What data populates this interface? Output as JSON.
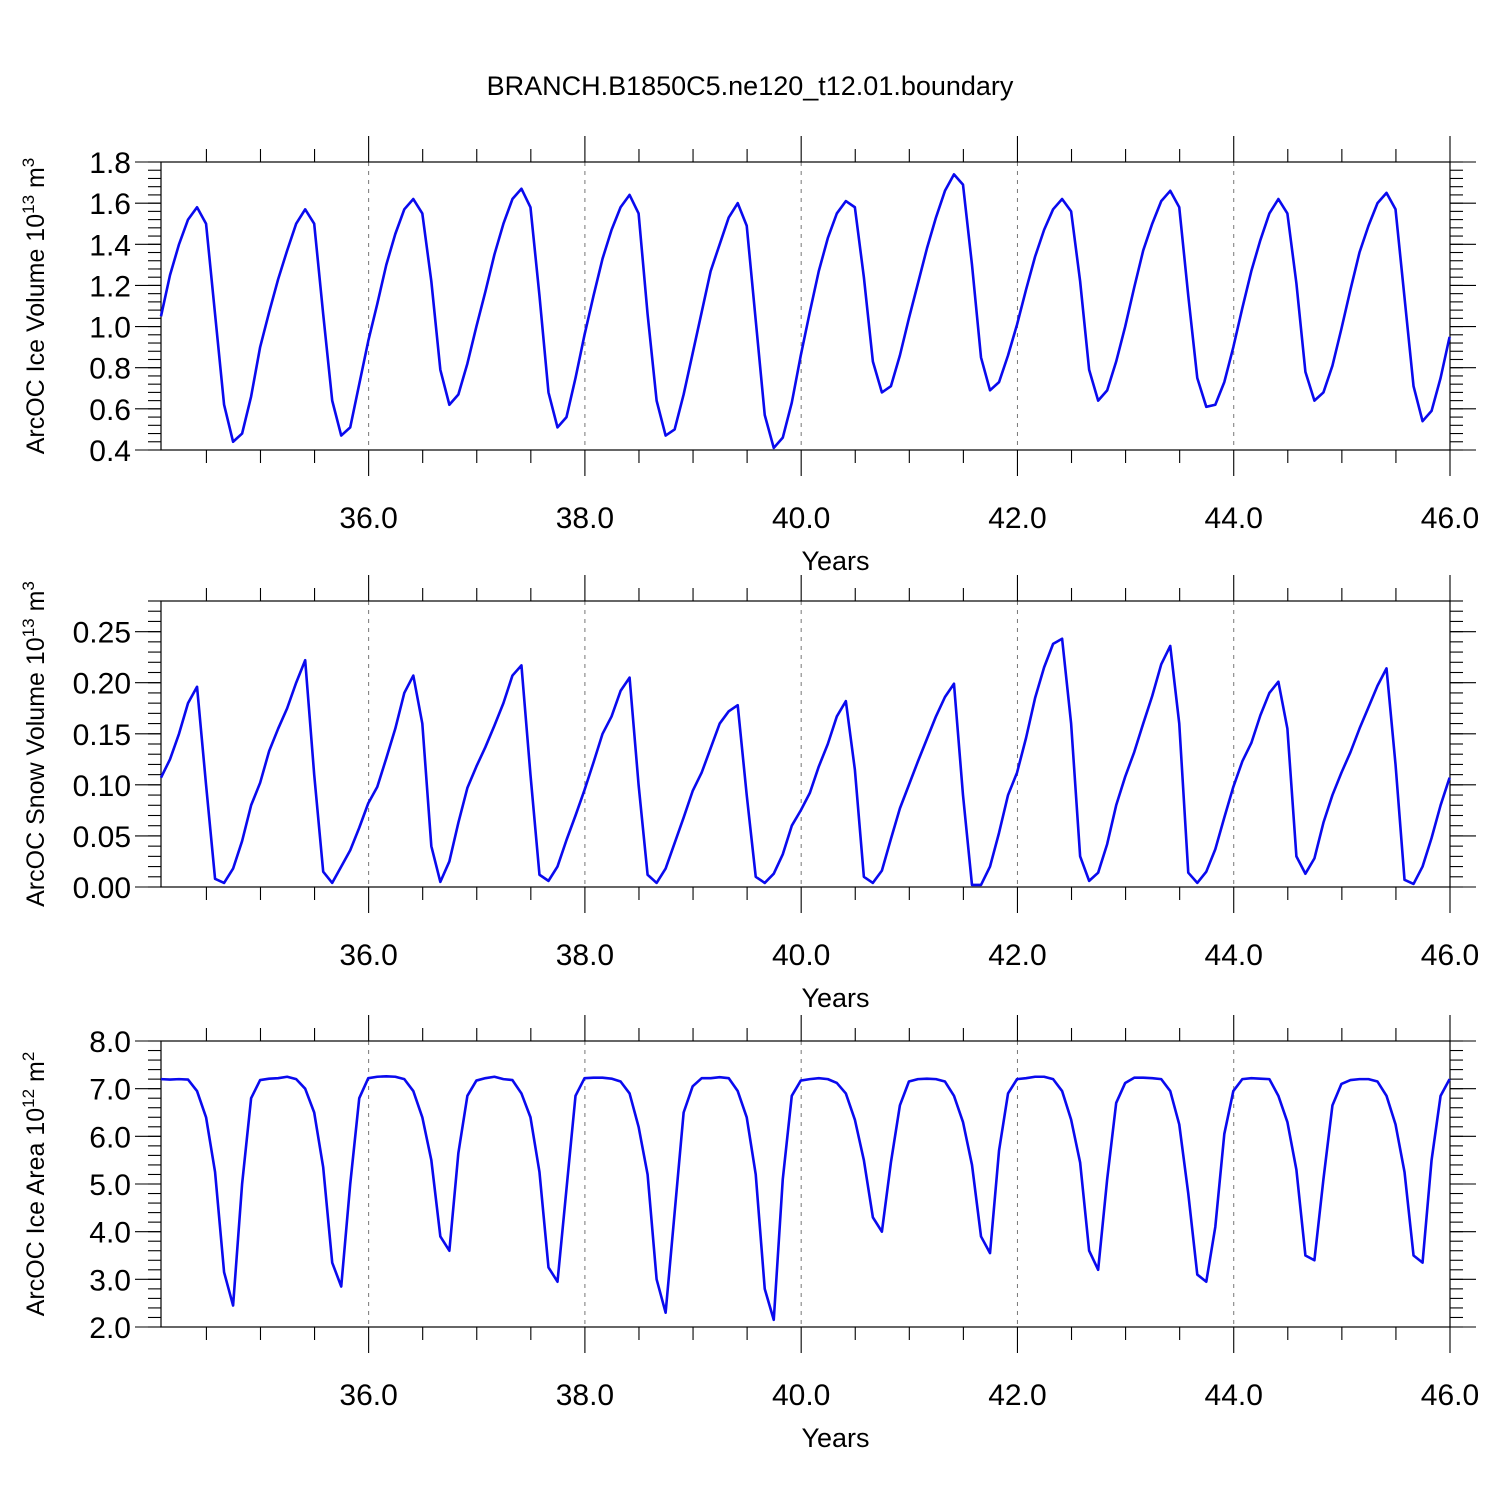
{
  "title": "BRANCH.B1850C5.ne120_t12.01.boundary",
  "colors": {
    "line": "#0a0aee",
    "axis": "#000000",
    "grid": "#777777"
  },
  "chart_data": [
    {
      "type": "line",
      "ylabel": "ArcOC Ice Volume 10",
      "ylabel_unit_exp": "13",
      "ylabel_unit": "m",
      "ylabel_unit_pow": "3",
      "xlabel": "Years",
      "xlim": [
        34.08,
        46.0
      ],
      "ylim": [
        0.4,
        1.8
      ],
      "xticks": [
        "36.0",
        "38.0",
        "40.0",
        "42.0",
        "44.0",
        "46.0"
      ],
      "yticks": [
        "0.4",
        "0.6",
        "0.8",
        "1.0",
        "1.2",
        "1.4",
        "1.6",
        "1.8"
      ],
      "grid": "x-dashed",
      "series": [
        {
          "x_start": 34.08,
          "x_step": 0.08333,
          "values": [
            1.05,
            1.25,
            1.4,
            1.52,
            1.58,
            1.5,
            1.06,
            0.62,
            0.44,
            0.48,
            0.66,
            0.9,
            1.07,
            1.23,
            1.37,
            1.5,
            1.57,
            1.5,
            1.06,
            0.64,
            0.47,
            0.51,
            0.72,
            0.93,
            1.11,
            1.3,
            1.45,
            1.57,
            1.62,
            1.55,
            1.22,
            0.79,
            0.62,
            0.67,
            0.82,
            1.0,
            1.17,
            1.35,
            1.5,
            1.62,
            1.67,
            1.58,
            1.15,
            0.68,
            0.51,
            0.56,
            0.75,
            0.96,
            1.15,
            1.33,
            1.47,
            1.58,
            1.64,
            1.55,
            1.06,
            0.64,
            0.47,
            0.5,
            0.67,
            0.87,
            1.07,
            1.27,
            1.4,
            1.53,
            1.6,
            1.49,
            1.03,
            0.57,
            0.41,
            0.46,
            0.63,
            0.86,
            1.07,
            1.27,
            1.43,
            1.55,
            1.61,
            1.58,
            1.24,
            0.83,
            0.68,
            0.71,
            0.86,
            1.04,
            1.21,
            1.38,
            1.53,
            1.66,
            1.74,
            1.69,
            1.3,
            0.85,
            0.69,
            0.73,
            0.86,
            1.01,
            1.18,
            1.34,
            1.47,
            1.57,
            1.62,
            1.56,
            1.22,
            0.79,
            0.64,
            0.69,
            0.83,
            1.0,
            1.19,
            1.37,
            1.5,
            1.61,
            1.66,
            1.58,
            1.15,
            0.75,
            0.61,
            0.62,
            0.73,
            0.9,
            1.09,
            1.27,
            1.42,
            1.55,
            1.62,
            1.55,
            1.21,
            0.78,
            0.64,
            0.68,
            0.81,
            0.99,
            1.18,
            1.36,
            1.49,
            1.6,
            1.65,
            1.57,
            1.14,
            0.71,
            0.54,
            0.59,
            0.75,
            0.95
          ]
        }
      ]
    },
    {
      "type": "line",
      "ylabel": "ArcOC Snow Volume 10",
      "ylabel_unit_exp": "13",
      "ylabel_unit": "m",
      "ylabel_unit_pow": "3",
      "xlabel": "Years",
      "xlim": [
        34.08,
        46.0
      ],
      "ylim": [
        0.0,
        0.28
      ],
      "xticks": [
        "36.0",
        "38.0",
        "40.0",
        "42.0",
        "44.0",
        "46.0"
      ],
      "yticks": [
        "0.00",
        "0.05",
        "0.10",
        "0.15",
        "0.20",
        "0.25"
      ],
      "grid": "x-dashed",
      "series": [
        {
          "x_start": 34.08,
          "x_step": 0.08333,
          "values": [
            0.107,
            0.125,
            0.15,
            0.18,
            0.196,
            0.1,
            0.008,
            0.004,
            0.018,
            0.045,
            0.08,
            0.102,
            0.133,
            0.155,
            0.175,
            0.2,
            0.222,
            0.11,
            0.015,
            0.004,
            0.02,
            0.036,
            0.058,
            0.082,
            0.098,
            0.126,
            0.155,
            0.19,
            0.207,
            0.16,
            0.04,
            0.005,
            0.025,
            0.063,
            0.097,
            0.118,
            0.137,
            0.158,
            0.18,
            0.207,
            0.217,
            0.11,
            0.012,
            0.006,
            0.02,
            0.046,
            0.07,
            0.095,
            0.122,
            0.15,
            0.167,
            0.192,
            0.205,
            0.1,
            0.012,
            0.004,
            0.018,
            0.043,
            0.068,
            0.094,
            0.112,
            0.136,
            0.16,
            0.172,
            0.178,
            0.09,
            0.01,
            0.004,
            0.013,
            0.032,
            0.06,
            0.075,
            0.092,
            0.118,
            0.14,
            0.167,
            0.182,
            0.115,
            0.01,
            0.004,
            0.016,
            0.047,
            0.077,
            0.1,
            0.123,
            0.145,
            0.167,
            0.186,
            0.199,
            0.09,
            0.002,
            0.002,
            0.02,
            0.053,
            0.09,
            0.112,
            0.146,
            0.185,
            0.215,
            0.238,
            0.243,
            0.16,
            0.03,
            0.006,
            0.014,
            0.042,
            0.08,
            0.108,
            0.132,
            0.16,
            0.187,
            0.218,
            0.236,
            0.16,
            0.014,
            0.004,
            0.015,
            0.037,
            0.068,
            0.098,
            0.123,
            0.141,
            0.168,
            0.19,
            0.201,
            0.155,
            0.03,
            0.013,
            0.028,
            0.063,
            0.09,
            0.112,
            0.132,
            0.155,
            0.176,
            0.197,
            0.214,
            0.12,
            0.007,
            0.003,
            0.02,
            0.048,
            0.08,
            0.107
          ]
        }
      ]
    },
    {
      "type": "line",
      "ylabel": "ArcOC Ice Area 10",
      "ylabel_unit_exp": "12",
      "ylabel_unit": "m",
      "ylabel_unit_pow": "2",
      "xlabel": "Years",
      "xlim": [
        34.08,
        46.0
      ],
      "ylim": [
        2.0,
        8.0
      ],
      "xticks": [
        "36.0",
        "38.0",
        "40.0",
        "42.0",
        "44.0",
        "46.0"
      ],
      "yticks": [
        "2.0",
        "3.0",
        "4.0",
        "5.0",
        "6.0",
        "7.0",
        "8.0"
      ],
      "grid": "x-dashed",
      "series": [
        {
          "x_start": 34.08,
          "x_step": 0.08333,
          "values": [
            7.2,
            7.19,
            7.2,
            7.19,
            6.95,
            6.4,
            5.25,
            3.15,
            2.45,
            5.0,
            6.8,
            7.18,
            7.21,
            7.22,
            7.25,
            7.2,
            7.0,
            6.5,
            5.35,
            3.35,
            2.85,
            5.0,
            6.8,
            7.22,
            7.25,
            7.26,
            7.25,
            7.2,
            6.95,
            6.4,
            5.5,
            3.9,
            3.6,
            5.65,
            6.85,
            7.17,
            7.22,
            7.25,
            7.2,
            7.18,
            6.9,
            6.4,
            5.25,
            3.25,
            2.95,
            4.9,
            6.85,
            7.22,
            7.23,
            7.23,
            7.21,
            7.15,
            6.9,
            6.2,
            5.2,
            3.0,
            2.3,
            4.4,
            6.5,
            7.05,
            7.22,
            7.22,
            7.24,
            7.22,
            6.95,
            6.4,
            5.2,
            2.8,
            2.15,
            5.1,
            6.85,
            7.17,
            7.2,
            7.22,
            7.2,
            7.12,
            6.9,
            6.35,
            5.5,
            4.3,
            4.0,
            5.45,
            6.65,
            7.15,
            7.2,
            7.21,
            7.2,
            7.15,
            6.85,
            6.3,
            5.4,
            3.9,
            3.55,
            5.7,
            6.9,
            7.2,
            7.22,
            7.25,
            7.25,
            7.2,
            6.95,
            6.35,
            5.45,
            3.6,
            3.2,
            5.1,
            6.7,
            7.12,
            7.23,
            7.23,
            7.22,
            7.2,
            6.95,
            6.25,
            4.8,
            3.1,
            2.95,
            4.1,
            6.05,
            6.95,
            7.2,
            7.22,
            7.21,
            7.2,
            6.85,
            6.3,
            5.3,
            3.5,
            3.4,
            5.1,
            6.65,
            7.1,
            7.18,
            7.2,
            7.2,
            7.15,
            6.85,
            6.25,
            5.25,
            3.5,
            3.35,
            5.5,
            6.85,
            7.2
          ]
        }
      ]
    }
  ]
}
